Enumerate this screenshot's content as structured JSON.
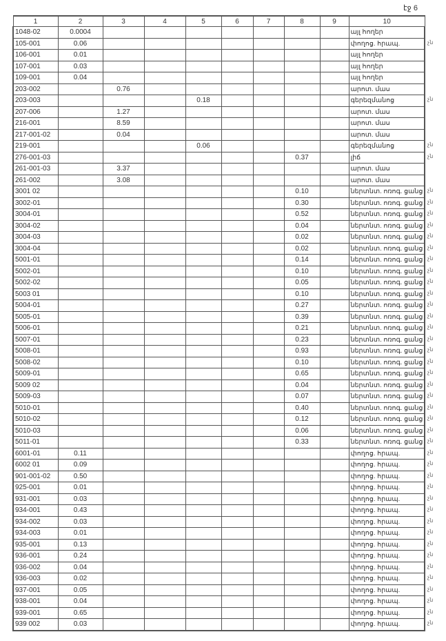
{
  "page_label": "էջ 6",
  "headers": [
    "1",
    "2",
    "3",
    "4",
    "5",
    "6",
    "7",
    "8",
    "9",
    "10"
  ],
  "rows": [
    {
      "c": [
        "1048-02",
        "0.0004",
        "",
        "",
        "",
        "",
        "",
        "",
        "",
        "այլ հողեր"
      ],
      "m": ""
    },
    {
      "c": [
        "105-001",
        "0.06",
        "",
        "",
        "",
        "",
        "",
        "",
        "",
        "փողոց. հրապ."
      ],
      "m": "չն"
    },
    {
      "c": [
        "106-001",
        "0.01",
        "",
        "",
        "",
        "",
        "",
        "",
        "",
        "այլ հողեր"
      ],
      "m": ""
    },
    {
      "c": [
        "107-001",
        "0.03",
        "",
        "",
        "",
        "",
        "",
        "",
        "",
        "այլ հողեր"
      ],
      "m": ""
    },
    {
      "c": [
        "109-001",
        "0.04",
        "",
        "",
        "",
        "",
        "",
        "",
        "",
        "այլ հողեր"
      ],
      "m": ""
    },
    {
      "c": [
        "203-002",
        "",
        "0.76",
        "",
        "",
        "",
        "",
        "",
        "",
        "արոտ. մաս"
      ],
      "m": ""
    },
    {
      "c": [
        "203-003",
        "",
        "",
        "",
        "0.18",
        "",
        "",
        "",
        "",
        "գերեզմանոց"
      ],
      "m": "չն"
    },
    {
      "c": [
        "207-006",
        "",
        "1.27",
        "",
        "",
        "",
        "",
        "",
        "",
        "արոտ. մաս"
      ],
      "m": ""
    },
    {
      "c": [
        "216-001",
        "",
        "8.59",
        "",
        "",
        "",
        "",
        "",
        "",
        "արոտ. մաս"
      ],
      "m": ""
    },
    {
      "c": [
        "217-001-02",
        "",
        "0.04",
        "",
        "",
        "",
        "",
        "",
        "",
        "արոտ. մաս"
      ],
      "m": ""
    },
    {
      "c": [
        "219-001",
        "",
        "",
        "",
        "0.06",
        "",
        "",
        "",
        "",
        "գերեզմանոց"
      ],
      "m": "չն"
    },
    {
      "c": [
        "276-001-03",
        "",
        "",
        "",
        "",
        "",
        "",
        "0.37",
        "",
        "լիճ"
      ],
      "m": "չն"
    },
    {
      "c": [
        "261-001-03",
        "",
        "3.37",
        "",
        "",
        "",
        "",
        "",
        "",
        "արոտ. մաս"
      ],
      "m": ""
    },
    {
      "c": [
        "261-002",
        "",
        "3.08",
        "",
        "",
        "",
        "",
        "",
        "",
        "արոտ. մաս"
      ],
      "m": ""
    },
    {
      "c": [
        "3001 02",
        "",
        "",
        "",
        "",
        "",
        "",
        "0.10",
        "",
        "ներտնտ. ոռոգ. ցանց"
      ],
      "m": "չն"
    },
    {
      "c": [
        "3002-01",
        "",
        "",
        "",
        "",
        "",
        "",
        "0.30",
        "",
        "ներտնտ. ոռոգ. ցանց"
      ],
      "m": "չն"
    },
    {
      "c": [
        "3004-01",
        "",
        "",
        "",
        "",
        "",
        "",
        "0.52",
        "",
        "ներտնտ. ոռոգ. ցանց"
      ],
      "m": "չն"
    },
    {
      "c": [
        "3004-02",
        "",
        "",
        "",
        "",
        "",
        "",
        "0.04",
        "",
        "ներտնտ. ոռոգ. ցանց"
      ],
      "m": "չն"
    },
    {
      "c": [
        "3004-03",
        "",
        "",
        "",
        "",
        "",
        "",
        "0.02",
        "",
        "ներտնտ. ոռոգ. ցանց"
      ],
      "m": "չն"
    },
    {
      "c": [
        "3004-04",
        "",
        "",
        "",
        "",
        "",
        "",
        "0.02",
        "",
        "ներտնտ. ոռոգ. ցանց"
      ],
      "m": "չն"
    },
    {
      "c": [
        "5001-01",
        "",
        "",
        "",
        "",
        "",
        "",
        "0.14",
        "",
        "ներտնտ. ոռոգ. ցանց"
      ],
      "m": "չն"
    },
    {
      "c": [
        "5002-01",
        "",
        "",
        "",
        "",
        "",
        "",
        "0.10",
        "",
        "ներտնտ. ոռոգ. ցանց"
      ],
      "m": "չն"
    },
    {
      "c": [
        "5002-02",
        "",
        "",
        "",
        "",
        "",
        "",
        "0.05",
        "",
        "ներտնտ. ոռոգ. ցանց"
      ],
      "m": "չն"
    },
    {
      "c": [
        "5003 01",
        "",
        "",
        "",
        "",
        "",
        "",
        "0.10",
        "",
        "ներտնտ. ոռոգ. ցանց"
      ],
      "m": "չն"
    },
    {
      "c": [
        "5004-01",
        "",
        "",
        "",
        "",
        "",
        "",
        "0.27",
        "",
        "ներտնտ. ոռոգ. ցանց"
      ],
      "m": "չն"
    },
    {
      "c": [
        "5005-01",
        "",
        "",
        "",
        "",
        "",
        "",
        "0.39",
        "",
        "ներտնտ. ոռոգ. ցանց"
      ],
      "m": "չն"
    },
    {
      "c": [
        "5006-01",
        "",
        "",
        "",
        "",
        "",
        "",
        "0.21",
        "",
        "ներտնտ. ոռոգ. ցանց"
      ],
      "m": "չն"
    },
    {
      "c": [
        "5007-01",
        "",
        "",
        "",
        "",
        "",
        "",
        "0.23",
        "",
        "ներտնտ. ոռոգ. ցանց"
      ],
      "m": "չն"
    },
    {
      "c": [
        "5008-01",
        "",
        "",
        "",
        "",
        "",
        "",
        "0.93",
        "",
        "ներտնտ. ոռոգ. ցանց"
      ],
      "m": "չն"
    },
    {
      "c": [
        "5008-02",
        "",
        "",
        "",
        "",
        "",
        "",
        "0.10",
        "",
        "ներտնտ. ոռոգ. ցանց"
      ],
      "m": "չն"
    },
    {
      "c": [
        "5009-01",
        "",
        "",
        "",
        "",
        "",
        "",
        "0.65",
        "",
        "ներտնտ. ոռոգ. ցանց"
      ],
      "m": "չն"
    },
    {
      "c": [
        "5009 02",
        "",
        "",
        "",
        "",
        "",
        "",
        "0.04",
        "",
        "ներտնտ. ոռոգ. ցանց"
      ],
      "m": "չն"
    },
    {
      "c": [
        "5009-03",
        "",
        "",
        "",
        "",
        "",
        "",
        "0.07",
        "",
        "ներտնտ. ոռոգ. ցանց"
      ],
      "m": "չն"
    },
    {
      "c": [
        "5010-01",
        "",
        "",
        "",
        "",
        "",
        "",
        "0.40",
        "",
        "ներտնտ. ոռոգ. ցանց"
      ],
      "m": "չն"
    },
    {
      "c": [
        "5010-02",
        "",
        "",
        "",
        "",
        "",
        "",
        "0.12",
        "",
        "ներտնտ. ոռոգ. ցանց"
      ],
      "m": "չն"
    },
    {
      "c": [
        "5010-03",
        "",
        "",
        "",
        "",
        "",
        "",
        "0.06",
        "",
        "ներտնտ. ոռոգ. ցանց"
      ],
      "m": "չն"
    },
    {
      "c": [
        "5011-01",
        "",
        "",
        "",
        "",
        "",
        "",
        "0.33",
        "",
        "ներտնտ. ոռոգ. ցանց"
      ],
      "m": "չն"
    },
    {
      "c": [
        "6001-01",
        "0.11",
        "",
        "",
        "",
        "",
        "",
        "",
        "",
        "փողոց. հրապ."
      ],
      "m": "չն"
    },
    {
      "c": [
        "6002 01",
        "0.09",
        "",
        "",
        "",
        "",
        "",
        "",
        "",
        "փողոց. հրապ."
      ],
      "m": "չն"
    },
    {
      "c": [
        "901-001-02",
        "0.50",
        "",
        "",
        "",
        "",
        "",
        "",
        "",
        "փողոց. հրապ."
      ],
      "m": "չն"
    },
    {
      "c": [
        "925-001",
        "0.01",
        "",
        "",
        "",
        "",
        "",
        "",
        "",
        "փողոց. հրապ."
      ],
      "m": "չն"
    },
    {
      "c": [
        "931-001",
        "0.03",
        "",
        "",
        "",
        "",
        "",
        "",
        "",
        "փողոց. հրապ."
      ],
      "m": "չն"
    },
    {
      "c": [
        "934-001",
        "0.43",
        "",
        "",
        "",
        "",
        "",
        "",
        "",
        "փողոց. հրապ."
      ],
      "m": "չն"
    },
    {
      "c": [
        "934-002",
        "0.03",
        "",
        "",
        "",
        "",
        "",
        "",
        "",
        "փողոց. հրապ."
      ],
      "m": "չն"
    },
    {
      "c": [
        "934-003",
        "0.01",
        "",
        "",
        "",
        "",
        "",
        "",
        "",
        "փողոց. հրապ."
      ],
      "m": "չն"
    },
    {
      "c": [
        "935-001",
        "0.13",
        "",
        "",
        "",
        "",
        "",
        "",
        "",
        "փողոց. հրապ."
      ],
      "m": "չն"
    },
    {
      "c": [
        "936-001",
        "0.24",
        "",
        "",
        "",
        "",
        "",
        "",
        "",
        "փողոց. հրապ."
      ],
      "m": "չն"
    },
    {
      "c": [
        "936-002",
        "0.04",
        "",
        "",
        "",
        "",
        "",
        "",
        "",
        "փողոց. հրապ."
      ],
      "m": "չն"
    },
    {
      "c": [
        "936-003",
        "0.02",
        "",
        "",
        "",
        "",
        "",
        "",
        "",
        "փողոց. հրապ."
      ],
      "m": "չն"
    },
    {
      "c": [
        "937-001",
        "0.05",
        "",
        "",
        "",
        "",
        "",
        "",
        "",
        "փողոց. հրապ."
      ],
      "m": "չն"
    },
    {
      "c": [
        "938-001",
        "0.04",
        "",
        "",
        "",
        "",
        "",
        "",
        "",
        "փողոց. հրապ."
      ],
      "m": "չն"
    },
    {
      "c": [
        "939-001",
        "0.65",
        "",
        "",
        "",
        "",
        "",
        "",
        "",
        "փողոց. հրապ."
      ],
      "m": "չն"
    },
    {
      "c": [
        "939 002",
        "0.03",
        "",
        "",
        "",
        "",
        "",
        "",
        "",
        "փողոց. հրապ."
      ],
      "m": "չն"
    }
  ]
}
